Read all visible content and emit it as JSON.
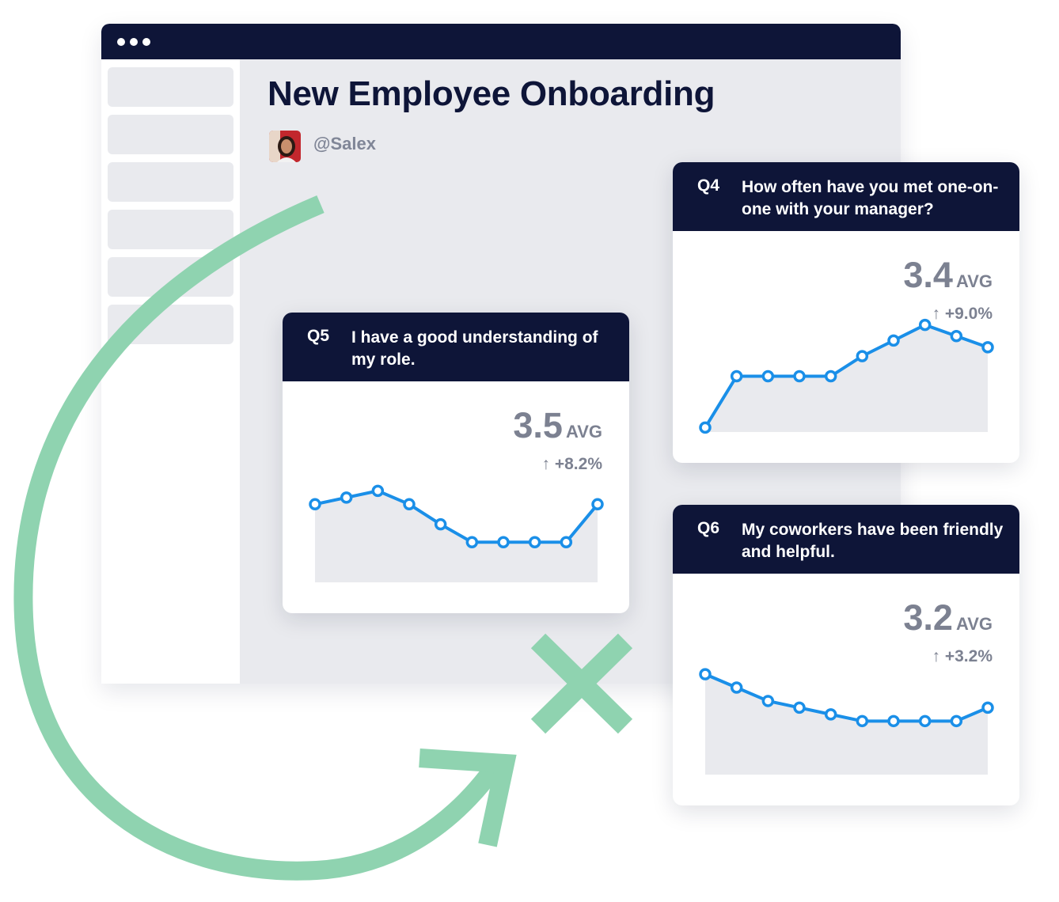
{
  "page": {
    "title": "New Employee Onboarding",
    "author": "@Salex"
  },
  "colors": {
    "navy": "#0e1538",
    "line": "#1a8fe8",
    "area": "#e9eaee",
    "arrow": "#8fd3b0",
    "muted": "#7c8191"
  },
  "icons": {
    "window_dots": "ellipsis-icon",
    "arrow": "curved-arrow-icon",
    "cross": "x-mark-icon",
    "delta": "arrow-up-icon"
  },
  "cards": {
    "q5": {
      "number": "Q5",
      "question": "I have a good understanding of my role.",
      "avg_value": "3.5",
      "avg_label": "AVG",
      "delta": "↑ +8.2%"
    },
    "q4": {
      "number": "Q4",
      "question": "How often have you met one-on-one with your manager?",
      "avg_value": "3.4",
      "avg_label": "AVG",
      "delta": "↑ +9.0%"
    },
    "q6": {
      "number": "Q6",
      "question": "My coworkers have been friendly and helpful.",
      "avg_value": "3.2",
      "avg_label": "AVG",
      "delta": "↑ +3.2%"
    }
  },
  "chart_data": [
    {
      "type": "area",
      "id": "q5",
      "x": [
        1,
        2,
        3,
        4,
        5,
        6,
        7,
        8,
        9,
        10
      ],
      "values": [
        3.5,
        3.8,
        4.1,
        3.5,
        2.6,
        1.8,
        1.8,
        1.8,
        1.8,
        3.5
      ],
      "ylim": [
        0,
        5
      ],
      "grid": false
    },
    {
      "type": "area",
      "id": "q4",
      "x": [
        1,
        2,
        3,
        4,
        5,
        6,
        7,
        8,
        9,
        10
      ],
      "values": [
        0.2,
        2.5,
        2.5,
        2.5,
        2.5,
        3.4,
        4.1,
        4.8,
        4.3,
        3.8
      ],
      "ylim": [
        0,
        5
      ],
      "grid": false
    },
    {
      "type": "area",
      "id": "q6",
      "x": [
        1,
        2,
        3,
        4,
        5,
        6,
        7,
        8,
        9,
        10
      ],
      "values": [
        4.5,
        3.9,
        3.3,
        3.0,
        2.7,
        2.4,
        2.4,
        2.4,
        2.4,
        3.0
      ],
      "ylim": [
        0,
        5
      ],
      "grid": false
    }
  ]
}
